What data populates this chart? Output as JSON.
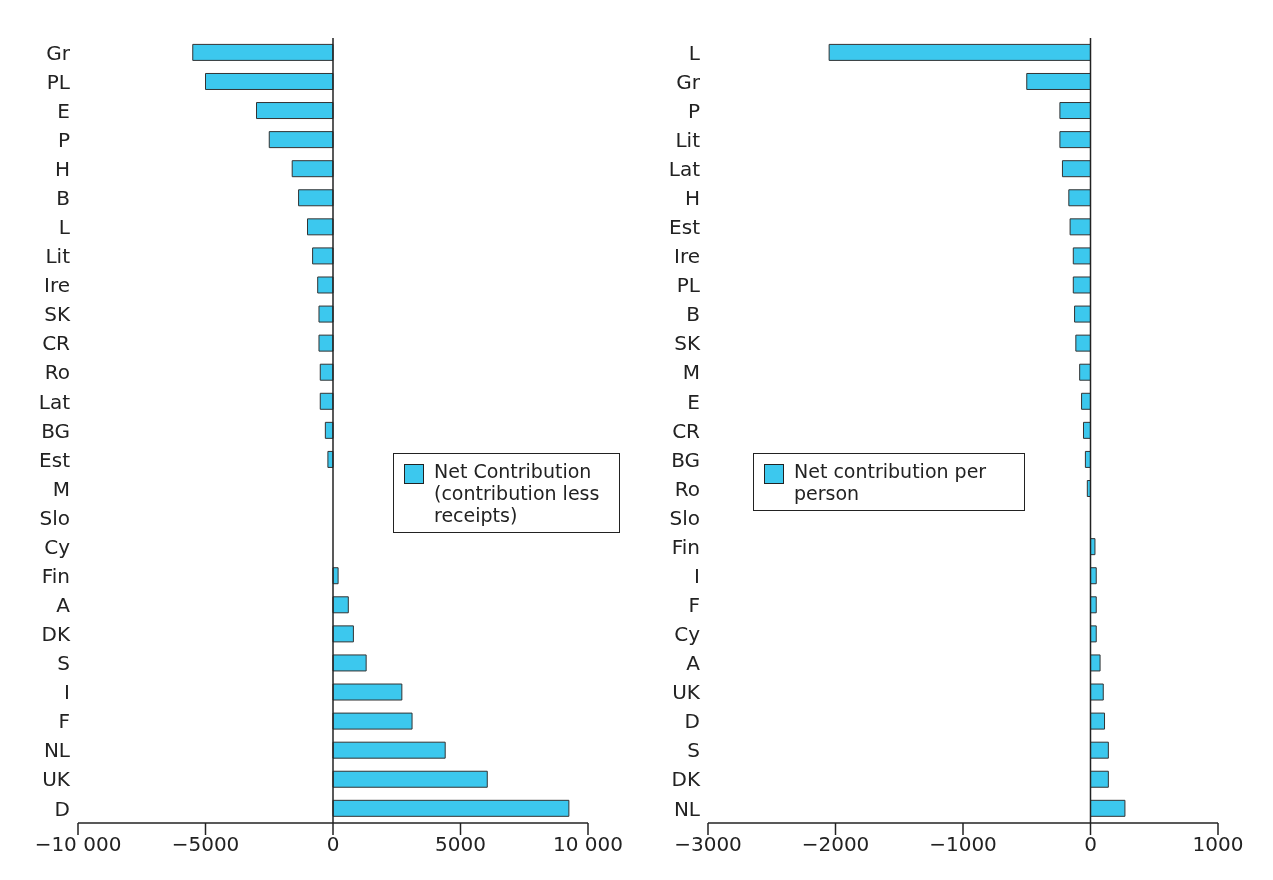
{
  "chart_data": [
    {
      "type": "bar",
      "orientation": "horizontal",
      "categories": [
        "Gr",
        "PL",
        "E",
        "P",
        "H",
        "B",
        "L",
        "Lit",
        "Ire",
        "SK",
        "CR",
        "Ro",
        "Lat",
        "BG",
        "Est",
        "M",
        "Slo",
        "Cy",
        "Fin",
        "A",
        "DK",
        "S",
        "I",
        "F",
        "NL",
        "UK",
        "D"
      ],
      "series": [
        {
          "name": "Net Contribution (contribution less receipts)",
          "color": "#3cc8ee",
          "values": [
            -5500,
            -5000,
            -3000,
            -2500,
            -1600,
            -1350,
            -1000,
            -800,
            -600,
            -550,
            -550,
            -500,
            -500,
            -300,
            -200,
            null,
            null,
            null,
            200,
            600,
            800,
            1300,
            2700,
            3100,
            4400,
            6050,
            9250
          ]
        }
      ],
      "xlim": [
        -10000,
        10000
      ],
      "xticks": [
        {
          "value": -10000,
          "label": "−10 000"
        },
        {
          "value": -5000,
          "label": "−5000"
        },
        0,
        5000,
        {
          "value": 10000,
          "label": "10 000"
        }
      ],
      "legend": "right",
      "ref_lines": [
        {
          "axis": "x",
          "value": 0,
          "color": "#222222"
        }
      ]
    },
    {
      "type": "bar",
      "orientation": "horizontal",
      "categories": [
        "L",
        "Gr",
        "P",
        "Lit",
        "Lat",
        "H",
        "Est",
        "Ire",
        "PL",
        "B",
        "SK",
        "M",
        "E",
        "CR",
        "BG",
        "Ro",
        "Slo",
        "Fin",
        "I",
        "F",
        "Cy",
        "A",
        "UK",
        "D",
        "S",
        "DK",
        "NL"
      ],
      "series": [
        {
          "name": "Net contribution per person",
          "color": "#3cc8ee",
          "values": [
            -2050,
            -500,
            -240,
            -240,
            -220,
            -170,
            -160,
            -135,
            -135,
            -125,
            -115,
            -85,
            -70,
            -55,
            -40,
            -25,
            null,
            35,
            45,
            45,
            45,
            75,
            100,
            110,
            140,
            140,
            270
          ]
        }
      ],
      "xlim": [
        -3000,
        1000
      ],
      "xticks": [
        {
          "value": -3000,
          "label": "−3000"
        },
        {
          "value": -2000,
          "label": "−2000"
        },
        {
          "value": -1000,
          "label": "−1000"
        },
        0,
        1000
      ],
      "legend": "left",
      "ref_lines": [
        {
          "axis": "x",
          "value": 0,
          "color": "#222222"
        }
      ]
    }
  ]
}
